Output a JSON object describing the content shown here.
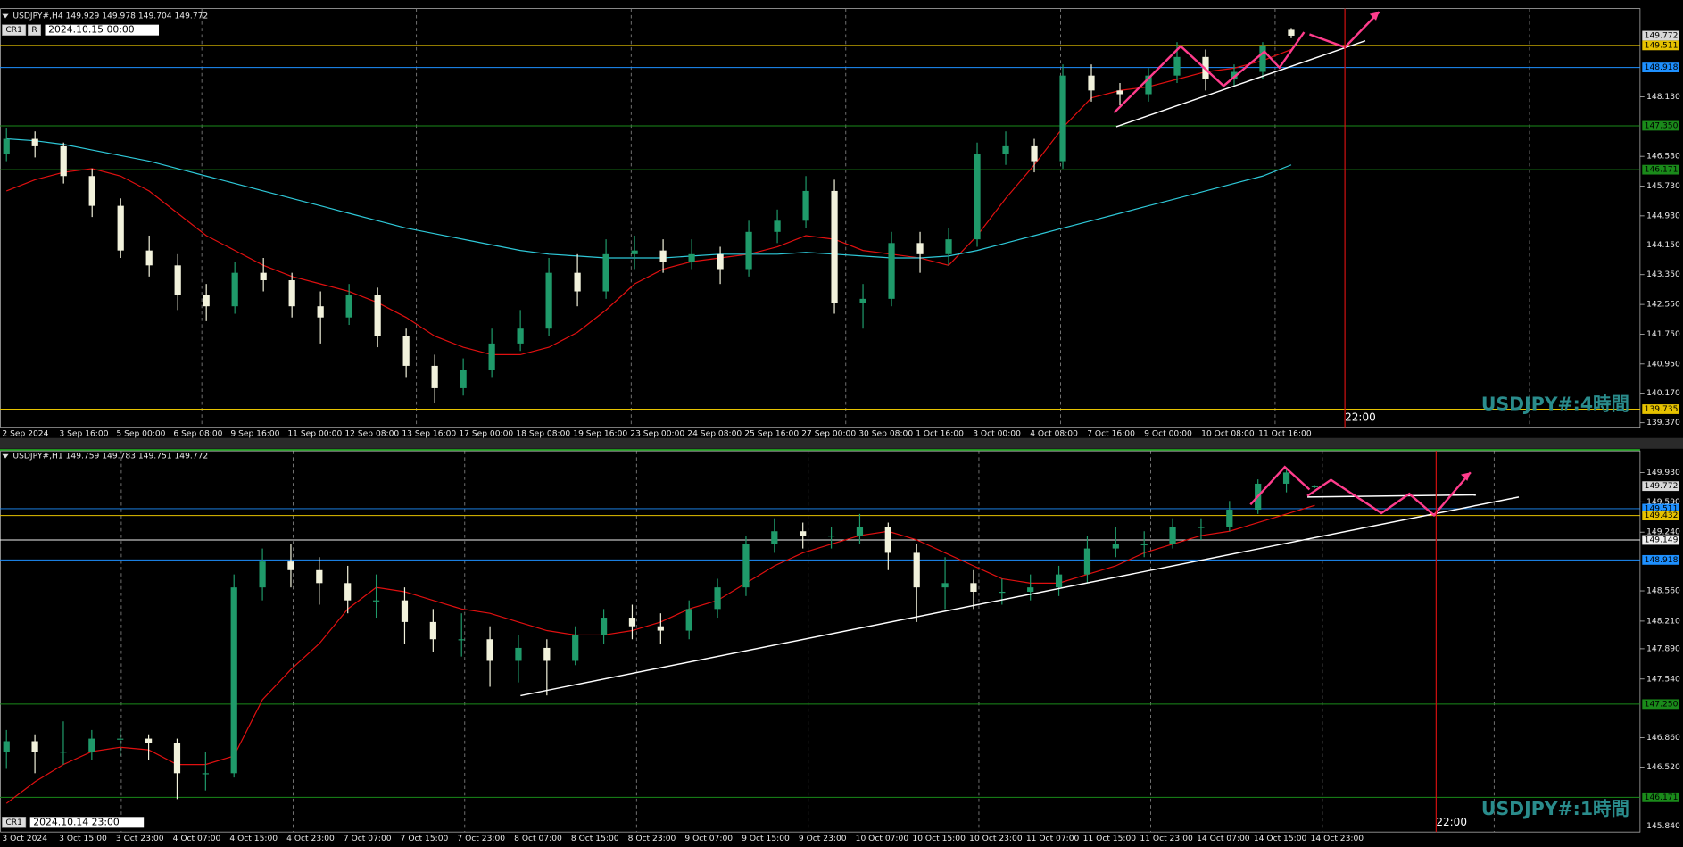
{
  "chart_data": [
    {
      "type": "candlestick",
      "header": "USDJPY#,H4  149.929 149.978 149.704 149.772",
      "tags": [
        "CR1",
        "R"
      ],
      "date_box": "2024.10.15 00:00",
      "watermark": "USDJPY#:4時間",
      "cursor_label": "22:00",
      "up_color": "#1f9a6a",
      "down_color": "#f2f2dc",
      "ylim": [
        139.25,
        150.5
      ],
      "yticks": [
        {
          "value": 148.13,
          "label": "148.130"
        },
        {
          "value": 146.53,
          "label": "146.530"
        },
        {
          "value": 145.73,
          "label": "145.730"
        },
        {
          "value": 144.93,
          "label": "144.930"
        },
        {
          "value": 144.15,
          "label": "144.150"
        },
        {
          "value": 143.35,
          "label": "143.350"
        },
        {
          "value": 142.55,
          "label": "142.550"
        },
        {
          "value": 141.75,
          "label": "141.750"
        },
        {
          "value": 140.95,
          "label": "140.950"
        },
        {
          "value": 140.17,
          "label": "140.170"
        },
        {
          "value": 139.37,
          "label": "139.370"
        }
      ],
      "current_price": 149.772,
      "levels": [
        {
          "value": 149.511,
          "color": "#e6c200"
        },
        {
          "value": 148.918,
          "color": "#1e90ff"
        },
        {
          "value": 147.35,
          "label": "147.350",
          "color": "#1a8a1a"
        },
        {
          "value": 146.171,
          "color": "#1a8a1a"
        },
        {
          "value": 139.735,
          "color": "#e6c200"
        }
      ],
      "categories": [
        "2 Sep 2024",
        null,
        "3 Sep 16:00",
        null,
        "5 Sep 00:00",
        null,
        "6 Sep 08:00",
        null,
        "9 Sep 16:00",
        null,
        "11 Sep 00:00",
        null,
        "12 Sep 08:00",
        null,
        "13 Sep 16:00",
        null,
        "17 Sep 00:00",
        null,
        "18 Sep 08:00",
        null,
        "19 Sep 16:00",
        null,
        "23 Sep 00:00",
        null,
        "24 Sep 08:00",
        null,
        "25 Sep 16:00",
        null,
        "27 Sep 00:00",
        null,
        "30 Sep 08:00",
        null,
        "1 Oct 16:00",
        null,
        "3 Oct 00:00",
        null,
        "4 Oct 08:00",
        null,
        "7 Oct 16:00",
        null,
        "9 Oct 00:00",
        null,
        "10 Oct 08:00",
        null,
        "11 Oct 16:00",
        null
      ],
      "candles": [
        [
          146.6,
          147.3,
          146.4,
          147.0
        ],
        [
          147.0,
          147.2,
          146.5,
          146.8
        ],
        [
          146.8,
          146.9,
          145.8,
          146.0
        ],
        [
          146.0,
          146.2,
          144.9,
          145.2
        ],
        [
          145.2,
          145.4,
          143.8,
          144.0
        ],
        [
          144.0,
          144.4,
          143.3,
          143.6
        ],
        [
          143.6,
          143.9,
          142.4,
          142.8
        ],
        [
          142.8,
          143.1,
          142.1,
          142.5
        ],
        [
          142.5,
          143.7,
          142.3,
          143.4
        ],
        [
          143.4,
          143.8,
          142.9,
          143.2
        ],
        [
          143.2,
          143.4,
          142.2,
          142.5
        ],
        [
          142.5,
          142.9,
          141.5,
          142.2
        ],
        [
          142.2,
          143.1,
          142.0,
          142.8
        ],
        [
          142.8,
          143.0,
          141.4,
          141.7
        ],
        [
          141.7,
          141.9,
          140.6,
          140.9
        ],
        [
          140.9,
          141.2,
          139.9,
          140.3
        ],
        [
          140.3,
          141.1,
          140.1,
          140.8
        ],
        [
          140.8,
          141.9,
          140.6,
          141.5
        ],
        [
          141.5,
          142.4,
          141.3,
          141.9
        ],
        [
          141.9,
          143.8,
          141.7,
          143.4
        ],
        [
          143.4,
          143.9,
          142.5,
          142.9
        ],
        [
          142.9,
          144.3,
          142.7,
          143.9
        ],
        [
          143.9,
          144.4,
          143.5,
          144.0
        ],
        [
          144.0,
          144.3,
          143.4,
          143.7
        ],
        [
          143.7,
          144.3,
          143.5,
          143.9
        ],
        [
          143.9,
          144.1,
          143.1,
          143.5
        ],
        [
          143.5,
          144.8,
          143.3,
          144.5
        ],
        [
          144.5,
          145.1,
          144.2,
          144.8
        ],
        [
          144.8,
          146.0,
          144.6,
          145.6
        ],
        [
          145.6,
          145.9,
          142.3,
          142.6
        ],
        [
          142.6,
          143.1,
          141.9,
          142.7
        ],
        [
          142.7,
          144.5,
          142.5,
          144.2
        ],
        [
          144.2,
          144.5,
          143.4,
          143.9
        ],
        [
          143.9,
          144.6,
          143.6,
          144.3
        ],
        [
          144.3,
          146.9,
          144.1,
          146.6
        ],
        [
          146.6,
          147.2,
          146.3,
          146.8
        ],
        [
          146.8,
          147.0,
          146.1,
          146.4
        ],
        [
          146.4,
          149.0,
          146.2,
          148.7
        ],
        [
          148.7,
          149.0,
          148.0,
          148.3
        ],
        [
          148.3,
          148.5,
          147.9,
          148.2
        ],
        [
          148.2,
          148.9,
          148.0,
          148.7
        ],
        [
          148.7,
          149.6,
          148.5,
          149.2
        ],
        [
          149.2,
          149.4,
          148.3,
          148.6
        ],
        [
          148.6,
          149.0,
          148.4,
          148.8
        ],
        [
          148.8,
          149.6,
          148.6,
          149.5
        ],
        [
          149.929,
          149.978,
          149.704,
          149.772
        ]
      ],
      "lines": [
        {
          "color": "#e01010",
          "values": [
            145.6,
            145.9,
            146.1,
            146.2,
            146.0,
            145.6,
            145.0,
            144.4,
            144.0,
            143.6,
            143.3,
            143.1,
            142.9,
            142.6,
            142.2,
            141.7,
            141.4,
            141.2,
            141.2,
            141.4,
            141.8,
            142.4,
            143.1,
            143.5,
            143.7,
            143.8,
            143.9,
            144.1,
            144.4,
            144.3,
            144.0,
            143.9,
            143.8,
            143.6,
            144.4,
            145.4,
            146.3,
            147.3,
            148.1,
            148.3,
            148.4,
            148.6,
            148.8,
            148.9,
            149.1,
            149.4
          ]
        },
        {
          "color": "#2ec8d8",
          "values": [
            147.0,
            146.95,
            146.85,
            146.7,
            146.55,
            146.4,
            146.2,
            146.0,
            145.8,
            145.6,
            145.4,
            145.2,
            145.0,
            144.8,
            144.6,
            144.45,
            144.3,
            144.15,
            144.0,
            143.9,
            143.85,
            143.8,
            143.8,
            143.8,
            143.85,
            143.9,
            143.9,
            143.9,
            143.95,
            143.9,
            143.85,
            143.8,
            143.8,
            143.85,
            144.0,
            144.2,
            144.4,
            144.6,
            144.8,
            145.0,
            145.2,
            145.4,
            145.6,
            145.8,
            146.0,
            146.3
          ]
        }
      ]
    },
    {
      "type": "candlestick",
      "header": "USDJPY#,H1  149.759 149.783 149.751 149.772",
      "tags": [
        "CR1"
      ],
      "date_box": "2024.10.14 23:00",
      "watermark": "USDJPY#:1時間",
      "cursor_label": "22:00",
      "up_color": "#1f9a6a",
      "down_color": "#f2f2dc",
      "ylim": [
        145.77,
        150.18
      ],
      "yticks": [
        {
          "value": 149.93,
          "label": "149.930"
        },
        {
          "value": 149.59,
          "label": "149.590"
        },
        {
          "value": 149.24,
          "label": "149.240"
        },
        {
          "value": 148.56,
          "label": "148.560"
        },
        {
          "value": 148.21,
          "label": "148.210"
        },
        {
          "value": 147.89,
          "label": "147.890"
        },
        {
          "value": 147.54,
          "label": "147.540"
        },
        {
          "value": 146.86,
          "label": "146.860"
        },
        {
          "value": 146.52,
          "label": "146.520"
        },
        {
          "value": 145.84,
          "label": "145.840"
        }
      ],
      "current_price": 149.772,
      "levels": [
        {
          "value": 149.511,
          "color": "#1e90ff"
        },
        {
          "value": 149.432,
          "color": "#e6c200"
        },
        {
          "value": 149.149,
          "color": "#f0f0f0"
        },
        {
          "value": 148.918,
          "color": "#1e90ff"
        },
        {
          "value": 147.25,
          "label": "147.250",
          "color": "#1a8a1a"
        },
        {
          "value": 146.171,
          "color": "#1a8a1a"
        }
      ],
      "categories": [
        "3 Oct 2024",
        null,
        "3 Oct 15:00",
        null,
        "3 Oct 23:00",
        null,
        "4 Oct 07:00",
        null,
        "4 Oct 15:00",
        null,
        "4 Oct 23:00",
        null,
        "7 Oct 07:00",
        null,
        "7 Oct 15:00",
        null,
        "7 Oct 23:00",
        null,
        "8 Oct 07:00",
        null,
        "8 Oct 15:00",
        null,
        "8 Oct 23:00",
        null,
        "9 Oct 07:00",
        null,
        "9 Oct 15:00",
        null,
        "9 Oct 23:00",
        null,
        "10 Oct 07:00",
        null,
        "10 Oct 15:00",
        null,
        "10 Oct 23:00",
        null,
        "11 Oct 07:00",
        null,
        "11 Oct 15:00",
        null,
        "11 Oct 23:00",
        null,
        "14 Oct 07:00",
        null,
        "14 Oct 15:00",
        null,
        "14 Oct 23:00"
      ],
      "candles": [
        [
          146.7,
          146.95,
          146.5,
          146.82
        ],
        [
          146.82,
          146.9,
          146.45,
          146.7
        ],
        [
          146.7,
          147.05,
          146.55,
          146.7
        ],
        [
          146.7,
          146.95,
          146.6,
          146.85
        ],
        [
          146.85,
          146.95,
          146.65,
          146.85
        ],
        [
          146.85,
          146.9,
          146.6,
          146.8
        ],
        [
          146.8,
          146.85,
          146.15,
          146.45
        ],
        [
          146.45,
          146.7,
          146.25,
          146.45
        ],
        [
          146.45,
          148.75,
          146.4,
          148.6
        ],
        [
          148.6,
          149.05,
          148.45,
          148.9
        ],
        [
          148.9,
          149.1,
          148.6,
          148.8
        ],
        [
          148.8,
          148.95,
          148.4,
          148.65
        ],
        [
          148.65,
          148.85,
          148.3,
          148.45
        ],
        [
          148.45,
          148.75,
          148.25,
          148.45
        ],
        [
          148.45,
          148.6,
          147.95,
          148.2
        ],
        [
          148.2,
          148.35,
          147.85,
          148.0
        ],
        [
          148.0,
          148.3,
          147.8,
          148.0
        ],
        [
          148.0,
          148.15,
          147.45,
          147.75
        ],
        [
          147.75,
          148.05,
          147.5,
          147.9
        ],
        [
          147.9,
          148.0,
          147.35,
          147.75
        ],
        [
          147.75,
          148.15,
          147.7,
          148.05
        ],
        [
          148.05,
          148.35,
          147.95,
          148.25
        ],
        [
          148.25,
          148.4,
          148.0,
          148.15
        ],
        [
          148.15,
          148.3,
          147.95,
          148.1
        ],
        [
          148.1,
          148.45,
          148.0,
          148.35
        ],
        [
          148.35,
          148.7,
          148.25,
          148.6
        ],
        [
          148.6,
          149.2,
          148.5,
          149.1
        ],
        [
          149.1,
          149.4,
          149.0,
          149.25
        ],
        [
          149.25,
          149.35,
          149.05,
          149.2
        ],
        [
          149.2,
          149.3,
          149.05,
          149.2
        ],
        [
          149.2,
          149.45,
          149.1,
          149.3
        ],
        [
          149.3,
          149.35,
          148.8,
          149.0
        ],
        [
          149.0,
          149.1,
          148.2,
          148.6
        ],
        [
          148.6,
          148.95,
          148.35,
          148.65
        ],
        [
          148.65,
          148.8,
          148.35,
          148.55
        ],
        [
          148.55,
          148.7,
          148.4,
          148.55
        ],
        [
          148.55,
          148.75,
          148.45,
          148.6
        ],
        [
          148.6,
          148.85,
          148.5,
          148.75
        ],
        [
          148.75,
          149.2,
          148.65,
          149.05
        ],
        [
          149.05,
          149.3,
          148.95,
          149.1
        ],
        [
          149.1,
          149.25,
          148.95,
          149.1
        ],
        [
          149.1,
          149.4,
          149.05,
          149.3
        ],
        [
          149.3,
          149.4,
          149.15,
          149.3
        ],
        [
          149.3,
          149.6,
          149.25,
          149.5
        ],
        [
          149.5,
          149.85,
          149.45,
          149.8
        ],
        [
          149.8,
          149.99,
          149.7,
          149.93
        ],
        [
          149.759,
          149.783,
          149.751,
          149.772
        ]
      ],
      "lines": [
        {
          "color": "#e01010",
          "values": [
            146.1,
            146.35,
            146.55,
            146.7,
            146.75,
            146.72,
            146.55,
            146.55,
            146.65,
            147.3,
            147.65,
            147.95,
            148.35,
            148.6,
            148.55,
            148.45,
            148.35,
            148.3,
            148.2,
            148.1,
            148.05,
            148.05,
            148.1,
            148.2,
            148.35,
            148.45,
            148.65,
            148.85,
            149.0,
            149.1,
            149.2,
            149.25,
            149.15,
            149.0,
            148.85,
            148.7,
            148.65,
            148.65,
            148.75,
            148.85,
            149.0,
            149.1,
            149.2,
            149.25,
            149.35,
            149.45,
            149.55
          ]
        }
      ]
    }
  ]
}
